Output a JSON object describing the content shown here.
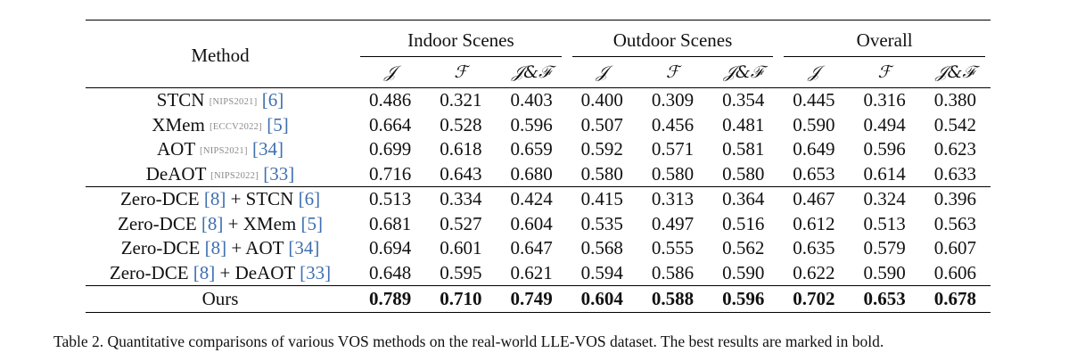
{
  "table": {
    "method_header": "Method",
    "groups": [
      "Indoor Scenes",
      "Outdoor Scenes",
      "Overall"
    ],
    "metrics": [
      "𝒥",
      "ℱ",
      "𝒥&ℱ",
      "𝒥",
      "ℱ",
      "𝒥&ℱ",
      "𝒥",
      "ℱ",
      "𝒥&ℱ"
    ],
    "baseline_rows": [
      {
        "name": "STCN",
        "venue": "[NIPS2021]",
        "cite": "[6]",
        "values": [
          "0.486",
          "0.321",
          "0.403",
          "0.400",
          "0.309",
          "0.354",
          "0.445",
          "0.316",
          "0.380"
        ]
      },
      {
        "name": "XMem",
        "venue": "[ECCV2022]",
        "cite": "[5]",
        "values": [
          "0.664",
          "0.528",
          "0.596",
          "0.507",
          "0.456",
          "0.481",
          "0.590",
          "0.494",
          "0.542"
        ]
      },
      {
        "name": "AOT",
        "venue": "[NIPS2021]",
        "cite": "[34]",
        "values": [
          "0.699",
          "0.618",
          "0.659",
          "0.592",
          "0.571",
          "0.581",
          "0.649",
          "0.596",
          "0.623"
        ]
      },
      {
        "name": "DeAOT",
        "venue": "[NIPS2022]",
        "cite": "[33]",
        "values": [
          "0.716",
          "0.643",
          "0.680",
          "0.580",
          "0.580",
          "0.580",
          "0.653",
          "0.614",
          "0.633"
        ]
      }
    ],
    "combo_rows": [
      {
        "prefix": "Zero-DCE",
        "cite1": "[8]",
        "mid": " + STCN ",
        "cite2": "[6]",
        "values": [
          "0.513",
          "0.334",
          "0.424",
          "0.415",
          "0.313",
          "0.364",
          "0.467",
          "0.324",
          "0.396"
        ]
      },
      {
        "prefix": "Zero-DCE",
        "cite1": "[8]",
        "mid": " + XMem ",
        "cite2": "[5]",
        "values": [
          "0.681",
          "0.527",
          "0.604",
          "0.535",
          "0.497",
          "0.516",
          "0.612",
          "0.513",
          "0.563"
        ]
      },
      {
        "prefix": "Zero-DCE",
        "cite1": "[8]",
        "mid": " + AOT ",
        "cite2": "[34]",
        "values": [
          "0.694",
          "0.601",
          "0.647",
          "0.568",
          "0.555",
          "0.562",
          "0.635",
          "0.579",
          "0.607"
        ]
      },
      {
        "prefix": "Zero-DCE",
        "cite1": "[8]",
        "mid": " + DeAOT ",
        "cite2": "[33]",
        "values": [
          "0.648",
          "0.595",
          "0.621",
          "0.594",
          "0.586",
          "0.590",
          "0.622",
          "0.590",
          "0.606"
        ]
      }
    ],
    "ours_row": {
      "name": "Ours",
      "values": [
        "0.789",
        "0.710",
        "0.749",
        "0.604",
        "0.588",
        "0.596",
        "0.702",
        "0.653",
        "0.678"
      ]
    }
  },
  "caption": "Table 2. Quantitative comparisons of various VOS methods on the real-world LLE-VOS dataset. The best results are marked in bold."
}
